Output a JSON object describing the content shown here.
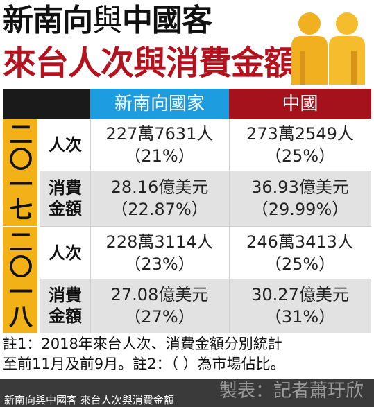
{
  "title": {
    "line1_part1": "新南向",
    "line1_part2": "與",
    "line1_part3": "中國客",
    "line2": "來台人次與消費金額"
  },
  "table": {
    "headers": [
      "新南向國家",
      "中國"
    ],
    "years": [
      {
        "year_chars": [
          "二",
          "〇",
          "一",
          "七"
        ],
        "rows": [
          {
            "label": "人次",
            "label_line2": "",
            "a": "227萬7631人",
            "a_pct": "（21%）",
            "b": "273萬2549人",
            "b_pct": "（25%）"
          },
          {
            "label": "消費",
            "label_line2": "金額",
            "a": "28.16億美元",
            "a_pct": "（22.87%）",
            "b": "36.93億美元",
            "b_pct": "（29.99%）"
          }
        ]
      },
      {
        "year_chars": [
          "二",
          "〇",
          "一",
          "八"
        ],
        "rows": [
          {
            "label": "人次",
            "label_line2": "",
            "a": "228萬3114人",
            "a_pct": "（23%）",
            "b": "246萬3413人",
            "b_pct": "（25%）"
          },
          {
            "label": "消費",
            "label_line2": "金額",
            "a": "27.08億美元",
            "a_pct": "（27%）",
            "b": "30.27億美元",
            "b_pct": "（31%）"
          }
        ]
      }
    ]
  },
  "note": {
    "line1": "註1：2018年來台人次、消費金額分別統計",
    "line2": "至前11月及前9月。註2：（ ）為市場佔比。"
  },
  "footer": {
    "caption": "新南向與中國客 來台人次與消費金額",
    "credit": "製表：記者蕭玗欣"
  },
  "colors": {
    "blue": "#1e9ce0",
    "red": "#a6121c",
    "gold": "#f2b117",
    "title_red": "#b3121f"
  }
}
